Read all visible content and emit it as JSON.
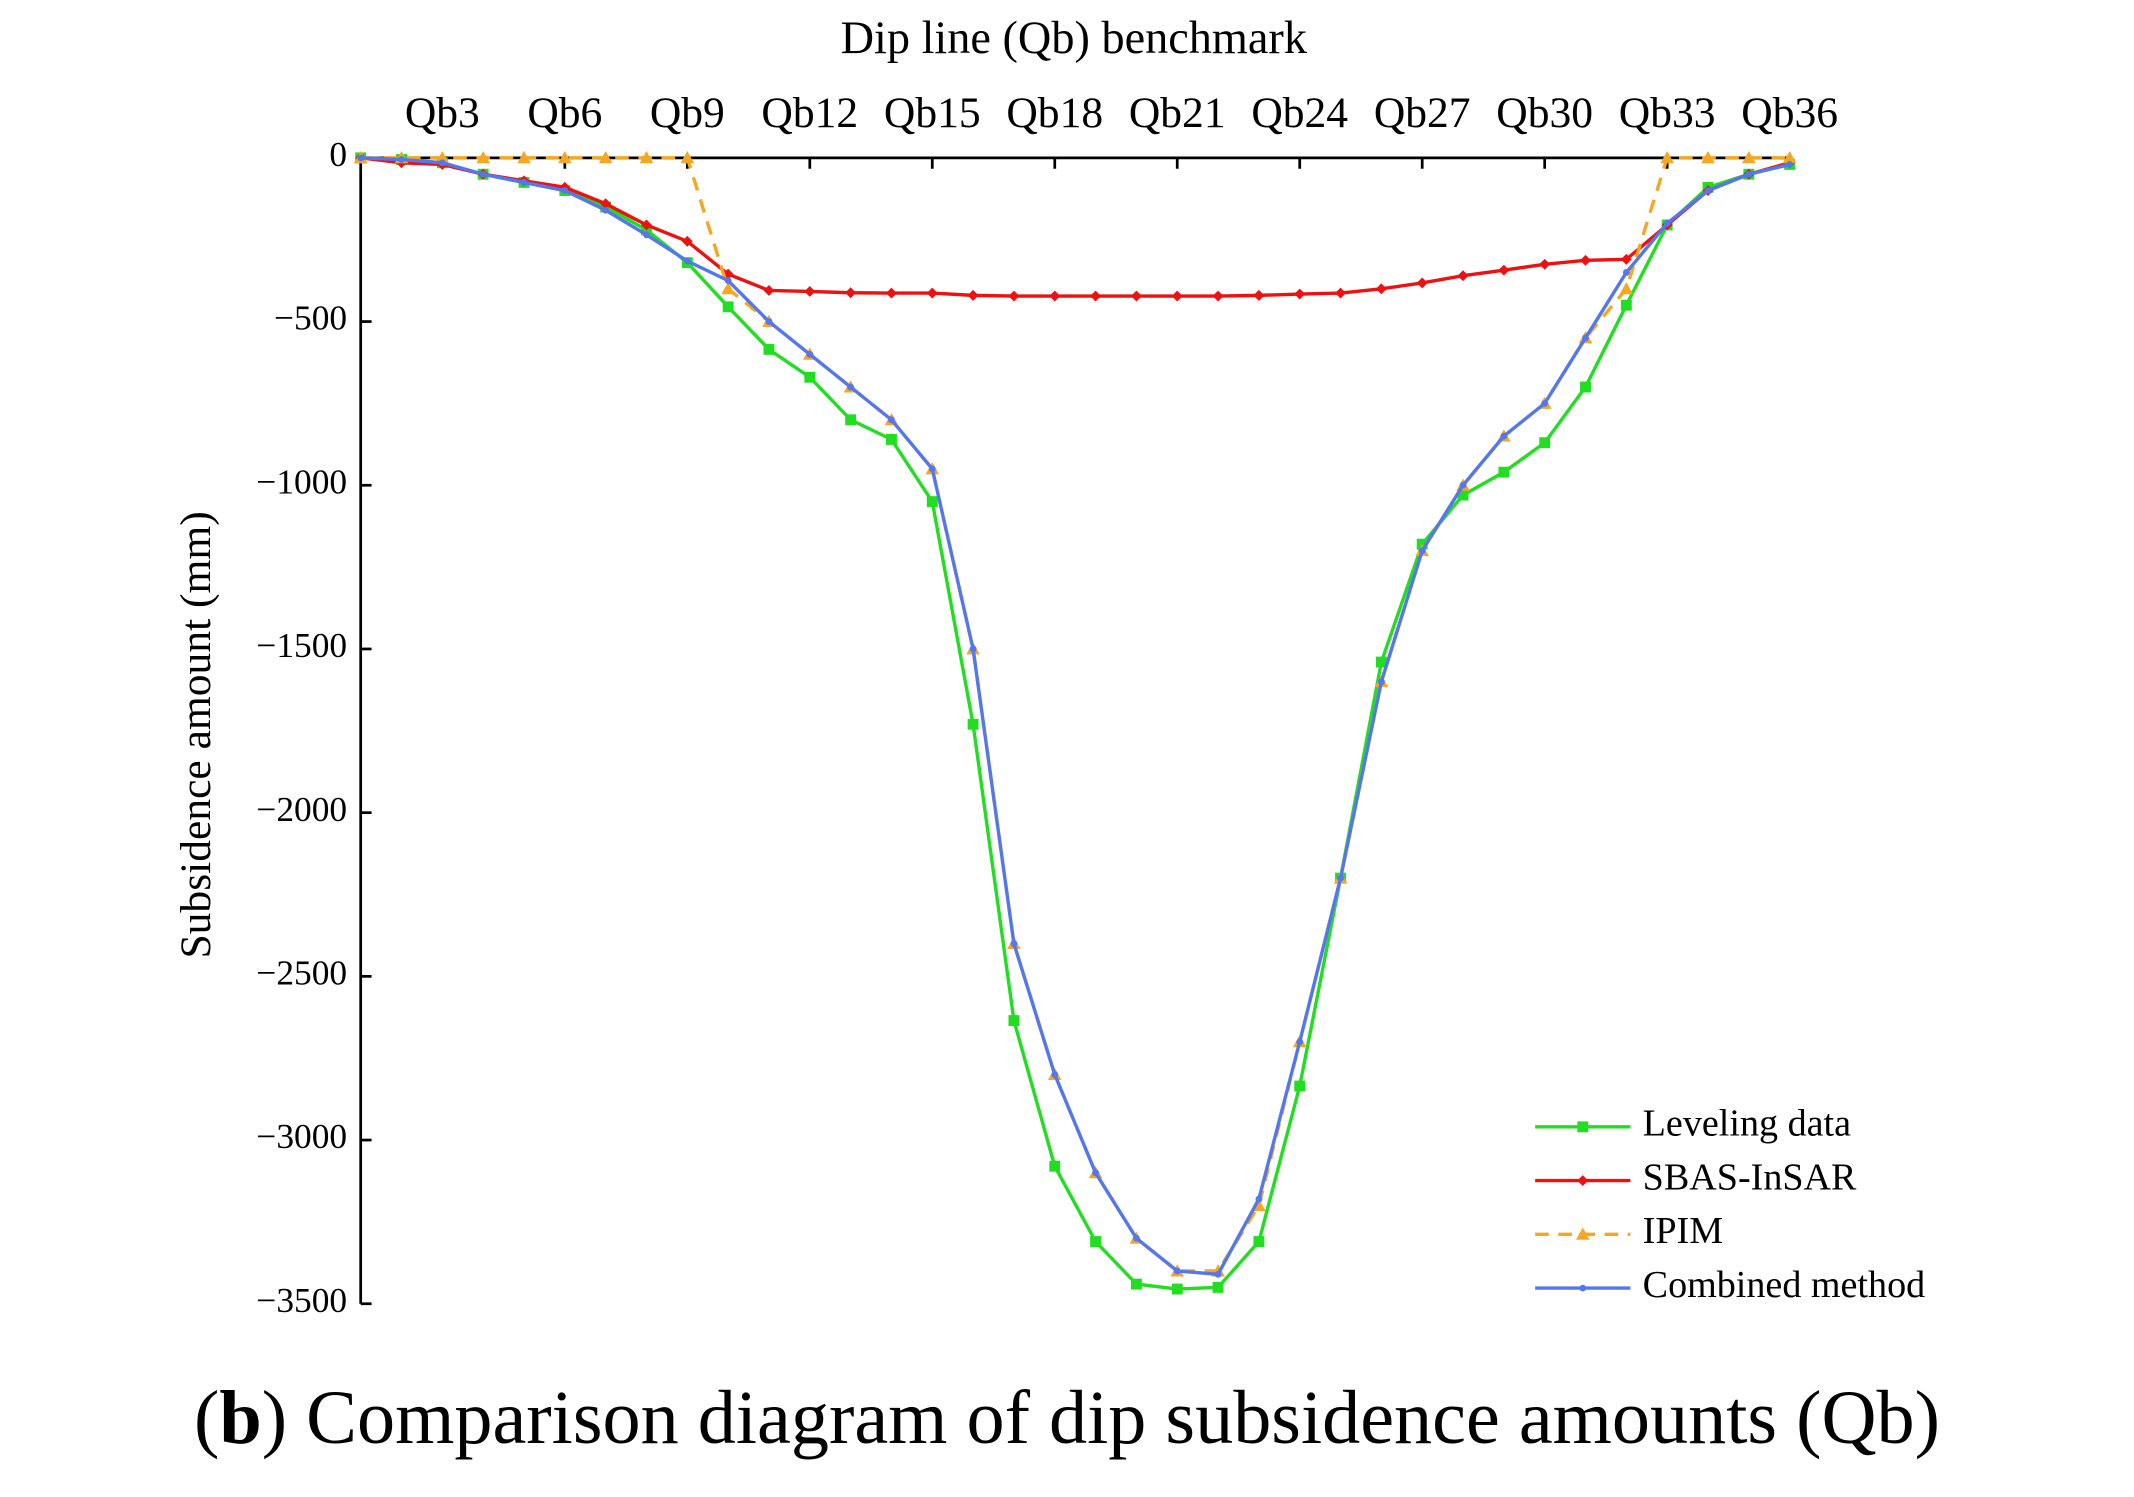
{
  "chart_data": {
    "type": "line",
    "title": "Dip line (Qb) benchmark",
    "ylabel": "Subsidence amount (mm)",
    "caption_parts": [
      "(",
      "b",
      ") Comparison diagram of dip subsidence amounts (Qb)"
    ],
    "categories": [
      null,
      null,
      "Qb3",
      null,
      null,
      "Qb6",
      null,
      null,
      "Qb9",
      null,
      null,
      "Qb12",
      null,
      null,
      "Qb15",
      null,
      null,
      "Qb18",
      null,
      null,
      "Qb21",
      null,
      null,
      "Qb24",
      null,
      null,
      "Qb27",
      null,
      null,
      "Qb30",
      null,
      null,
      "Qb33",
      null,
      null,
      "Qb36"
    ],
    "series": [
      {
        "name": "Leveling data",
        "color": "#22dd22",
        "marker": "square",
        "dashed": false,
        "values": [
          0,
          -5,
          -15,
          -50,
          -75,
          -100,
          -150,
          -220,
          -320,
          -455,
          -585,
          -670,
          -800,
          -860,
          -1050,
          -1730,
          -2635,
          -3080,
          -3310,
          -3440,
          -3455,
          -3450,
          -3310,
          -2835,
          -2200,
          -1540,
          -1180,
          -1030,
          -960,
          -870,
          -700,
          -450,
          -205,
          -90,
          -50,
          -20
        ]
      },
      {
        "name": "SBAS-InSAR",
        "color": "#ee1111",
        "marker": "diamond",
        "dashed": false,
        "values": [
          0,
          -15,
          -20,
          -50,
          -70,
          -90,
          -140,
          -205,
          -255,
          -355,
          -405,
          -408,
          -412,
          -413,
          -413,
          -420,
          -422,
          -422,
          -422,
          -422,
          -422,
          -422,
          -420,
          -416,
          -413,
          -400,
          -382,
          -360,
          -343,
          -325,
          -313,
          -310,
          -205,
          -100,
          -50,
          -15
        ]
      },
      {
        "name": "IPIM",
        "color": "#f5a623",
        "marker": "triangle",
        "dashed": true,
        "values": [
          0,
          0,
          0,
          0,
          0,
          0,
          0,
          0,
          0,
          -400,
          -500,
          -600,
          -700,
          -800,
          -950,
          -1500,
          -2400,
          -2800,
          -3100,
          -3300,
          -3400,
          -3400,
          -3200,
          -2700,
          -2200,
          -1600,
          -1200,
          -1000,
          -850,
          -750,
          -550,
          -400,
          0,
          0,
          0,
          0
        ]
      },
      {
        "name": "Combined method",
        "color": "#5577ee",
        "marker": "dot",
        "dashed": false,
        "values": [
          0,
          -5,
          -15,
          -50,
          -75,
          -100,
          -160,
          -235,
          -315,
          -375,
          -500,
          -600,
          -700,
          -800,
          -950,
          -1500,
          -2400,
          -2800,
          -3100,
          -3300,
          -3400,
          -3410,
          -3180,
          -2700,
          -2200,
          -1600,
          -1200,
          -1000,
          -850,
          -750,
          -550,
          -350,
          -200,
          -100,
          -50,
          -20
        ]
      }
    ],
    "ylim": [
      -3500,
      0
    ],
    "yticks": [
      0,
      {
        "value": -500,
        "label": "−500"
      },
      {
        "value": -1000,
        "label": "−1000"
      },
      {
        "value": -1500,
        "label": "−1500"
      },
      {
        "value": -2000,
        "label": "−2000"
      },
      {
        "value": -2500,
        "label": "−2500"
      },
      {
        "value": -3000,
        "label": "−3000"
      },
      {
        "value": -3500,
        "label": "−3500"
      }
    ],
    "legend": "lower right"
  }
}
